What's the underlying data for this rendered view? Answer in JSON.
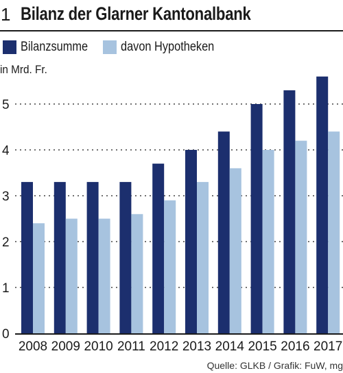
{
  "header": {
    "number": "1",
    "title": "Bilanz der Glarner Kantonalbank"
  },
  "unit_label": "in Mrd. Fr.",
  "source": "Quelle: GLKB / Grafik: FuW, mg",
  "colors": {
    "series_1": "#1c2f6e",
    "series_2": "#a7c3df",
    "text": "#1a1a1a"
  },
  "chart_data": {
    "type": "bar",
    "categories": [
      "2008",
      "2009",
      "2010",
      "2011",
      "2012",
      "2013",
      "2014",
      "2015",
      "2016",
      "2017"
    ],
    "series": [
      {
        "name": "Bilanzsumme",
        "values": [
          3.3,
          3.3,
          3.3,
          3.3,
          3.7,
          4.0,
          4.4,
          5.0,
          5.3,
          5.6
        ]
      },
      {
        "name": "davon Hypotheken",
        "values": [
          2.4,
          2.5,
          2.5,
          2.6,
          2.9,
          3.3,
          3.6,
          4.0,
          4.2,
          4.4
        ]
      }
    ],
    "yticks": [
      0,
      1,
      2,
      3,
      4,
      5
    ],
    "ylim": [
      0,
      5.6
    ],
    "ylabel": "in Mrd. Fr.",
    "grid": true,
    "legend_position": "top-left"
  }
}
